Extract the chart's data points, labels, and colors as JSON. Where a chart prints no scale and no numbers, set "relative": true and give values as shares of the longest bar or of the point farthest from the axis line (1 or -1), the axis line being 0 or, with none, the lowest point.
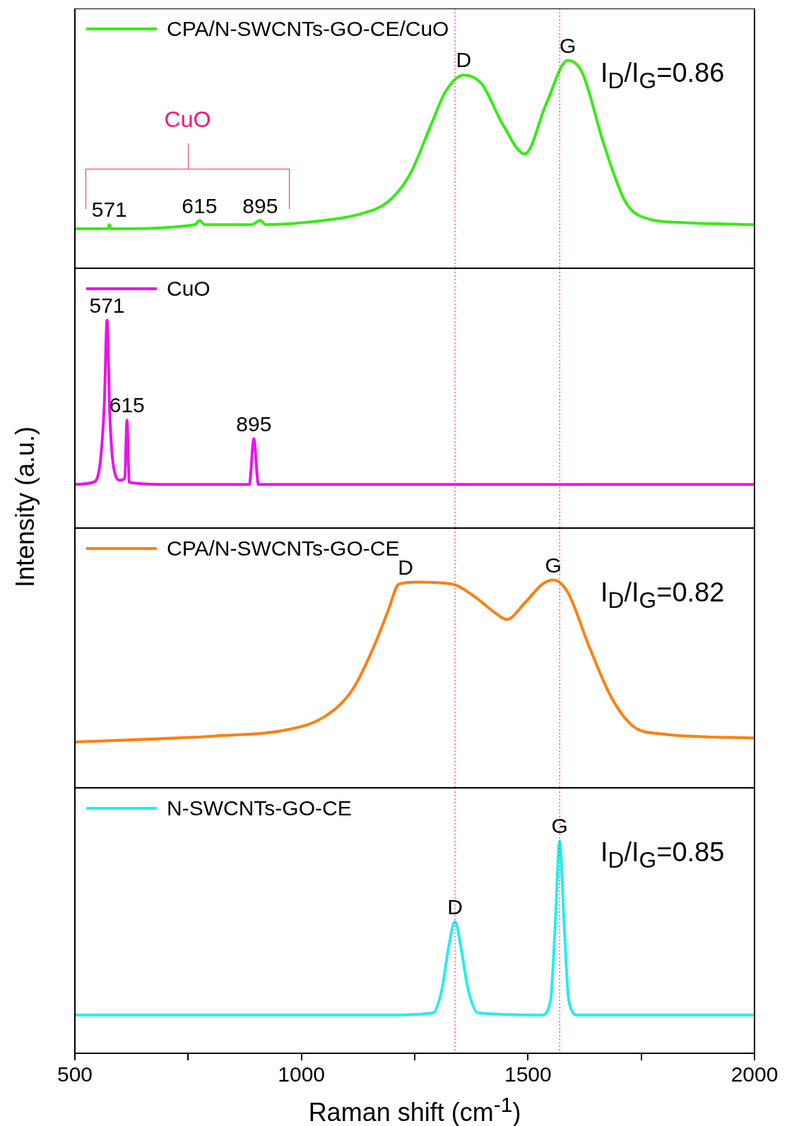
{
  "chart_data": [
    {
      "type": "line",
      "relative": true,
      "legend": "top left",
      "tick_labels": false,
      "xlim": [
        500,
        2000
      ],
      "x": [
        500,
        573,
        576,
        580,
        765,
        775,
        787,
        890,
        909,
        921,
        1049,
        1128,
        1191,
        1239,
        1286,
        1318,
        1358,
        1397,
        1445,
        1493,
        1540,
        1588,
        1620,
        1667,
        1715,
        1762,
        1841,
        2000
      ],
      "series": [
        {
          "name": "CPA/N-SWCNTs-GO-CE/CuO",
          "color": "#33ee11",
          "values": [
            0.19,
            0.19,
            0.21,
            0.19,
            0.21,
            0.23,
            0.21,
            0.21,
            0.23,
            0.21,
            0.23,
            0.26,
            0.32,
            0.45,
            0.69,
            0.85,
            0.93,
            0.89,
            0.69,
            0.55,
            0.79,
            1,
            0.94,
            0.6,
            0.32,
            0.24,
            0.22,
            0.21
          ]
        }
      ],
      "ref_lines": [
        {
          "axis": "x",
          "value": 1339,
          "color": "#ff3366",
          "line_style": "dotted"
        },
        {
          "axis": "x",
          "value": 1570,
          "color": "#ff3366",
          "line_style": "dotted"
        }
      ],
      "annotations": [
        "CuO",
        "I$_{D}$/I$_{G}$=0.86",
        {
          "text": "571",
          "x": 576,
          "y": 0.21
        },
        {
          "text": "615",
          "x": 775,
          "y": 0.23
        },
        {
          "text": "895",
          "x": 909,
          "y": 0.23
        },
        {
          "text": "D",
          "x": 1358,
          "y": 0.93
        },
        {
          "text": "G",
          "x": 1588,
          "y": 1
        }
      ]
    },
    {
      "type": "line",
      "relative": true,
      "legend": "top left",
      "tick_labels": false,
      "xlim": [
        500,
        2000
      ],
      "ylabel": "Intensity (a.u.)",
      "x": [
        500,
        540,
        555,
        565,
        571,
        577,
        585,
        600,
        610,
        615,
        620,
        700,
        885,
        895,
        905,
        2000
      ],
      "series": [
        {
          "name": "CuO",
          "color": "#ee11ee",
          "values": [
            0.21,
            0.22,
            0.3,
            0.6,
            1,
            0.55,
            0.3,
            0.23,
            0.24,
            0.52,
            0.22,
            0.21,
            0.21,
            0.43,
            0.21,
            0.21
          ]
        }
      ],
      "ref_lines": [
        {
          "axis": "x",
          "value": 1339,
          "color": "#ff3366",
          "line_style": "dotted"
        },
        {
          "axis": "x",
          "value": 1570,
          "color": "#ff3366",
          "line_style": "dotted"
        }
      ],
      "annotations": [
        {
          "text": "571",
          "x": 571,
          "y": 1
        },
        {
          "text": "615",
          "x": 615,
          "y": 0.52
        },
        {
          "text": "895",
          "x": 895,
          "y": 0.43
        }
      ]
    },
    {
      "type": "line",
      "relative": true,
      "legend": "top left",
      "tick_labels": false,
      "xlim": [
        500,
        2000
      ],
      "x": [
        500,
        811,
        969,
        1049,
        1112,
        1160,
        1191,
        1215,
        1255,
        1334,
        1382,
        1429,
        1453,
        1493,
        1532,
        1556,
        1588,
        1635,
        1683,
        1730,
        1794,
        2000
      ],
      "series": [
        {
          "name": "CPA/N-SWCNTs-GO-CE",
          "color": "#ff7f0e",
          "values": [
            0.22,
            0.25,
            0.28,
            0.34,
            0.47,
            0.68,
            0.85,
            0.98,
            0.99,
            0.98,
            0.92,
            0.84,
            0.81,
            0.89,
            0.98,
            1,
            0.94,
            0.68,
            0.44,
            0.3,
            0.26,
            0.24
          ]
        }
      ],
      "ref_lines": [
        {
          "axis": "x",
          "value": 1339,
          "color": "#ff3366",
          "line_style": "dotted"
        },
        {
          "axis": "x",
          "value": 1570,
          "color": "#ff3366",
          "line_style": "dotted"
        }
      ],
      "annotations": [
        "I$_{D}$/I$_{G}$=0.82",
        {
          "text": "D",
          "x": 1230,
          "y": 0.99
        },
        {
          "text": "G",
          "x": 1556,
          "y": 1
        }
      ]
    },
    {
      "type": "line",
      "relative": true,
      "legend": "top left",
      "tick_labels": "x",
      "xlim": [
        500,
        2000
      ],
      "xticks": [
        500,
        {
          "value": 750,
          "label": null
        },
        1000,
        {
          "value": 1250,
          "label": null
        },
        1500,
        {
          "value": 1750,
          "label": null
        },
        2000
      ],
      "xlabel": "Raman shift (cm$^{-1}$)",
      "x": [
        500,
        1200,
        1290,
        1310,
        1325,
        1339,
        1352,
        1368,
        1390,
        1530,
        1550,
        1560,
        1570,
        1580,
        1590,
        1610,
        2000
      ],
      "series": [
        {
          "name": "N-SWCNTs-GO-CE",
          "color": "#22eeee",
          "values": [
            0.18,
            0.18,
            0.19,
            0.3,
            0.5,
            0.62,
            0.5,
            0.3,
            0.19,
            0.18,
            0.25,
            0.6,
            1,
            0.6,
            0.25,
            0.18,
            0.18
          ]
        }
      ],
      "ref_lines": [
        {
          "axis": "x",
          "value": 1339,
          "color": "#ff3366",
          "line_style": "dotted"
        },
        {
          "axis": "x",
          "value": 1570,
          "color": "#ff3366",
          "line_style": "dotted"
        }
      ],
      "annotations": [
        "I$_{D}$/I$_{G}$=0.85",
        {
          "text": "D",
          "x": 1339,
          "y": 0.62
        },
        {
          "text": "G",
          "x": 1570,
          "y": 1
        }
      ]
    }
  ]
}
